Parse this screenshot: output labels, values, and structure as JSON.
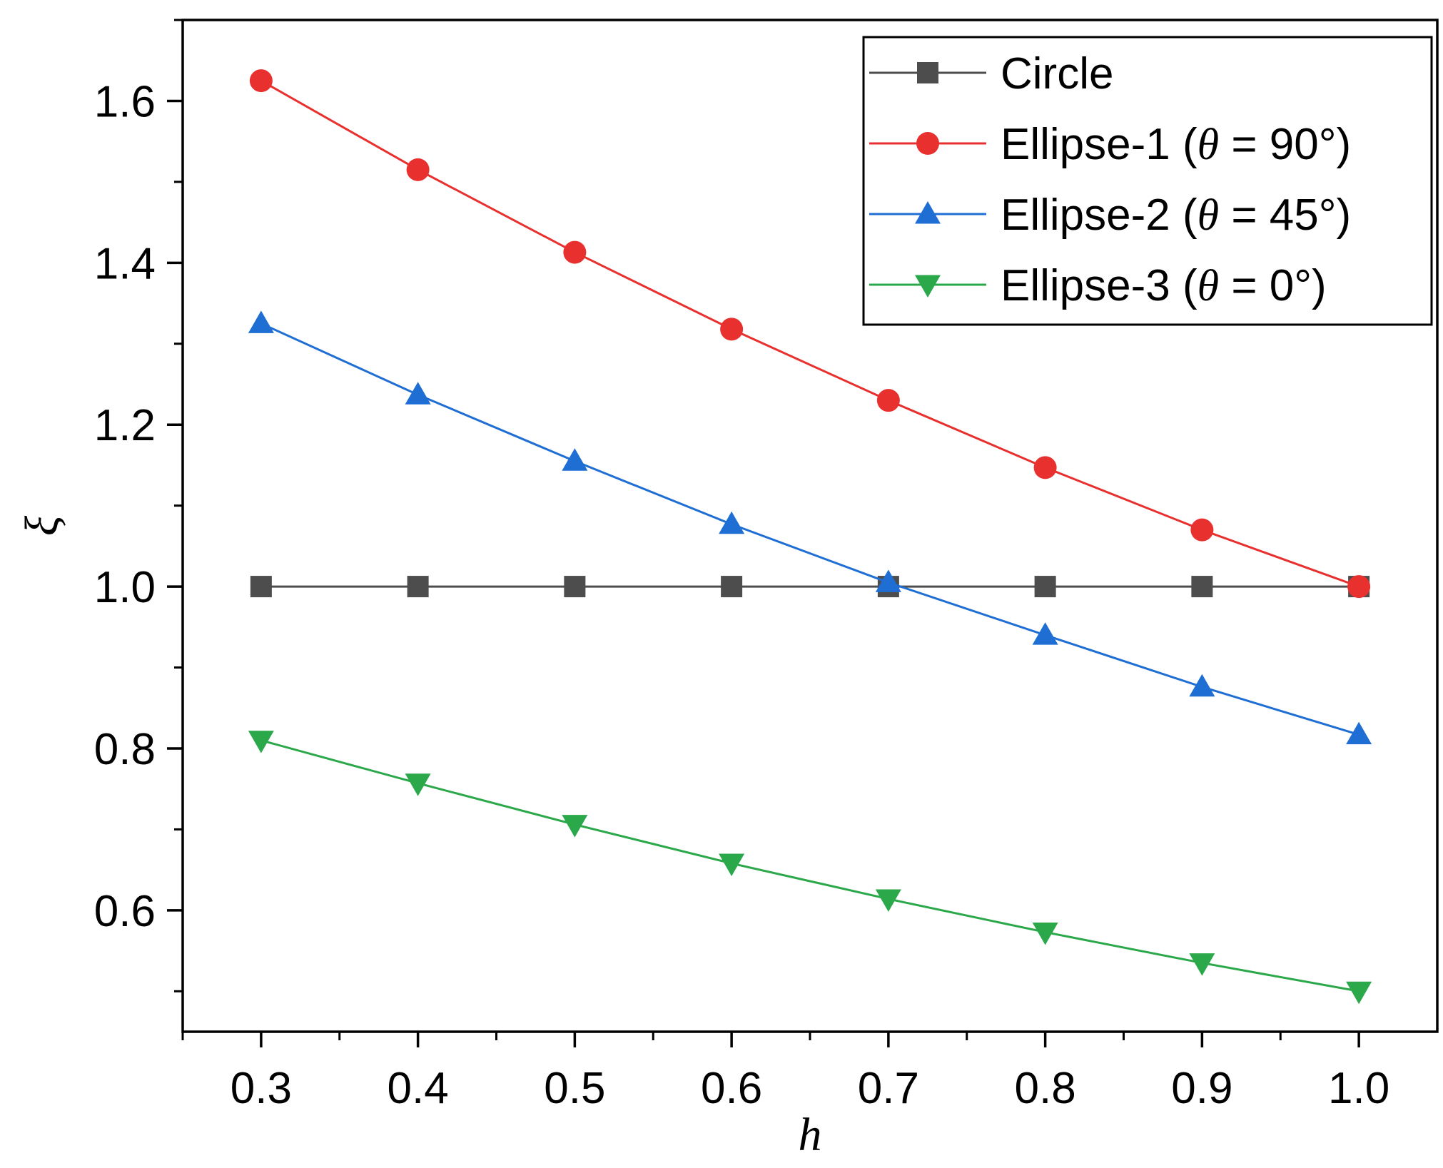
{
  "chart_data": {
    "type": "line",
    "title": "",
    "xlabel": "h",
    "ylabel": "ξ",
    "xlim": [
      0.25,
      1.05
    ],
    "ylim": [
      0.45,
      1.7
    ],
    "x": [
      0.3,
      0.4,
      0.5,
      0.6,
      0.7,
      0.8,
      0.9,
      1.0
    ],
    "x_ticks": [
      "0.3",
      "0.4",
      "0.5",
      "0.6",
      "0.7",
      "0.8",
      "0.9",
      "1.0"
    ],
    "y_ticks": [
      "0.6",
      "0.8",
      "1.0",
      "1.2",
      "1.4",
      "1.6"
    ],
    "legend_position": "top-right",
    "series": [
      {
        "name": "Circle",
        "label_main": "Circle",
        "label_theta": "",
        "label_value": "",
        "color": "#4d4d4d",
        "marker": "square",
        "values": [
          1.0,
          1.0,
          1.0,
          1.0,
          1.0,
          1.0,
          1.0,
          1.0
        ]
      },
      {
        "name": "Ellipse-1 (θ = 90°)",
        "label_main": "Ellipse-1 (",
        "label_theta": "θ",
        "label_value": " = 90°)",
        "color": "#e8302f",
        "marker": "circle",
        "values": [
          1.625,
          1.515,
          1.413,
          1.318,
          1.23,
          1.147,
          1.07,
          1.0
        ]
      },
      {
        "name": "Ellipse-2 (θ = 45°)",
        "label_main": "Ellipse-2 (",
        "label_theta": "θ",
        "label_value": " = 45°)",
        "color": "#1f6ed4",
        "marker": "triangle-up",
        "values": [
          1.325,
          1.237,
          1.155,
          1.077,
          1.005,
          0.94,
          0.876,
          0.817
        ]
      },
      {
        "name": "Ellipse-3 (θ = 0°)",
        "label_main": "Ellipse-3 (",
        "label_theta": "θ",
        "label_value": " = 0°)",
        "color": "#2ba84a",
        "marker": "triangle-down",
        "values": [
          0.81,
          0.757,
          0.706,
          0.658,
          0.614,
          0.573,
          0.535,
          0.5
        ]
      }
    ]
  }
}
